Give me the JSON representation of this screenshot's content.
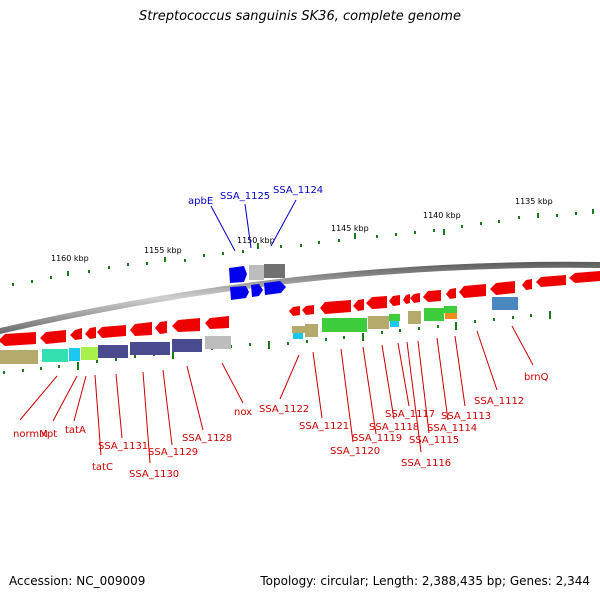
{
  "title": "Streptococcus sanguinis SK36, complete genome",
  "footer": {
    "accession": "Accession: NC_009009",
    "topology": "Topology: circular; Length: 2,388,435 bp; Genes: 2,344"
  },
  "scale_labels": [
    "1160 kbp",
    "1155 kbp",
    "1150 kbp",
    "1145 kbp",
    "1140 kbp",
    "1135 kbp"
  ],
  "gene_labels_forward": [
    "apbE",
    "SSA_1125",
    "SSA_1124"
  ],
  "gene_labels_reverse": [
    "normM",
    "xpt",
    "tatA",
    "tatC",
    "SSA_1131",
    "SSA_1130",
    "SSA_1129",
    "SSA_1128",
    "nox",
    "SSA_1122",
    "SSA_1121",
    "SSA_1120",
    "SSA_1119",
    "SSA_1118",
    "SSA_1117",
    "SSA_1116",
    "SSA_1115",
    "SSA_1114",
    "SSA_1113",
    "SSA_1112",
    "brnQ"
  ],
  "colors": {
    "backbone": "#8a8a8a",
    "reverse_cds": "#ee0000",
    "forward_cds": "#0000ee",
    "tick": "#1a7a1a",
    "label_red": "#cc0000",
    "label_blue": "#0000cc",
    "cog_olive": "#b5aa6c",
    "cog_teal": "#35e0b0",
    "cog_cyan": "#1ac8f0",
    "cog_lime": "#a8f04c",
    "cog_purple": "#4a4a8e",
    "cog_gray": "#bdbdbd",
    "cog_green": "#3ccc3c",
    "cog_orange": "#f08c1a",
    "cog_steel": "#4a86c0",
    "cog_darkgray": "#707070"
  }
}
